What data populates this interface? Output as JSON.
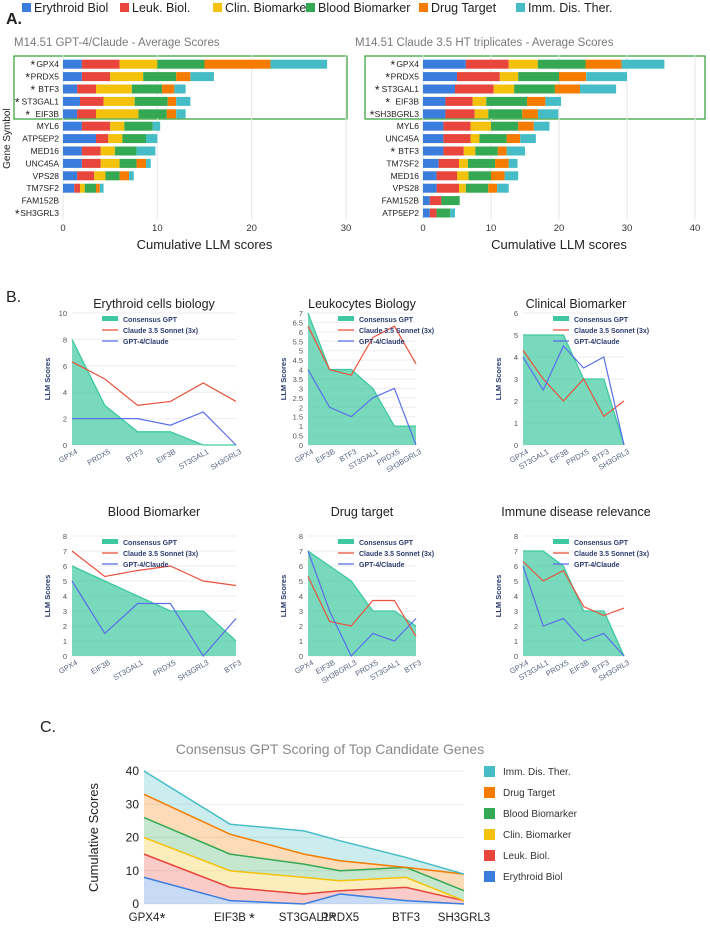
{
  "colors": {
    "erythroid": "#3b7ddd",
    "leuk": "#e8453c",
    "clin": "#f4c20d",
    "blood": "#34a853",
    "drug": "#f57c00",
    "imm": "#46bdc6",
    "consensus": "#3ec9a0",
    "claude": "#e8533f",
    "gpt": "#5a6fe8",
    "highlight": "#2e9e2e"
  },
  "panel_labels": {
    "a": "A.",
    "b": "B.",
    "c": "C."
  },
  "legend_top": [
    "Erythroid Biol",
    "Leuk. Biol.",
    "Clin. Biomarker",
    "Blood Biomarker",
    "Drug Target",
    "Imm. Dis. Ther."
  ],
  "chart_data": [
    {
      "type": "bar",
      "id": "a1",
      "stacked": true,
      "horizontal": true,
      "title": "M14.51 GPT-4/Claude - Average Scores",
      "xlabel": "Cumulative LLM scores",
      "ylabel": "Gene Symbol",
      "xlim": [
        0,
        30
      ],
      "xticks": [
        "0",
        "10",
        "20",
        "30"
      ],
      "categories": [
        "GPX4",
        "PRDX5",
        "BTF3",
        "ST3GAL1",
        "EIF3B",
        "MYL6",
        "ATP5EP2",
        "MED16",
        "UNC45A",
        "VPS28",
        "TM7SF2",
        "FAM152B",
        "SH3GRL3"
      ],
      "starred": [
        "GPX4",
        "PRDX5",
        "BTF3",
        "ST3GAL1",
        "EIF3B",
        "SH3GRL3"
      ],
      "series": [
        {
          "name": "Erythroid Biol",
          "values": [
            2,
            2,
            1.5,
            1.8,
            1.5,
            2,
            3.5,
            2,
            2,
            1.5,
            1.2,
            0,
            0
          ]
        },
        {
          "name": "Leuk. Biol.",
          "values": [
            4,
            3,
            2,
            2.5,
            2,
            3,
            1.3,
            2,
            2,
            1.8,
            0.6,
            0,
            0
          ]
        },
        {
          "name": "Clin. Biomarker",
          "values": [
            4,
            3.5,
            3.8,
            3.3,
            4.5,
            1.5,
            1.5,
            1.5,
            2,
            1.2,
            0.5,
            0,
            0
          ]
        },
        {
          "name": "Blood Biomarker",
          "values": [
            5,
            3.5,
            3.2,
            3.5,
            3,
            3,
            2.5,
            2.3,
            1.8,
            1.5,
            1.2,
            0,
            0
          ]
        },
        {
          "name": "Drug Target",
          "values": [
            7,
            1.5,
            1.3,
            0.9,
            1,
            0,
            0,
            0,
            1,
            1,
            0.4,
            0,
            0
          ]
        },
        {
          "name": "Imm. Dis. Ther.",
          "values": [
            6,
            2.5,
            1.2,
            1.5,
            1,
            0.8,
            1.2,
            2,
            0.5,
            0.5,
            0.4,
            0,
            0
          ]
        }
      ]
    },
    {
      "type": "bar",
      "id": "a2",
      "stacked": true,
      "horizontal": true,
      "title": "M14.51 Claude 3.5 HT triplicates - Average Scores",
      "xlabel": "Cumulative LLM scores",
      "ylabel": "",
      "xlim": [
        0,
        40
      ],
      "xticks": [
        "0",
        "10",
        "20",
        "30",
        "40"
      ],
      "categories": [
        "GPX4",
        "PRDX5",
        "ST3GAL1",
        "EIF3B",
        "SH3BGRL3",
        "MYL6",
        "UNC45A",
        "BTF3",
        "TM7SF2",
        "MED16",
        "VPS28",
        "FAM152B",
        "ATP5EP2"
      ],
      "starred": [
        "GPX4",
        "PRDX5",
        "ST3GAL1",
        "EIF3B",
        "SH3BGRL3",
        "BTF3"
      ],
      "series": [
        {
          "name": "Erythroid Biol",
          "values": [
            6.3,
            5,
            4.7,
            3.3,
            3.3,
            3,
            3,
            3,
            2.3,
            2,
            2,
            1,
            1
          ]
        },
        {
          "name": "Leuk. Biol.",
          "values": [
            6.3,
            6.3,
            5.7,
            4,
            4.3,
            4,
            4,
            3,
            3,
            3,
            3.3,
            1.7,
            1
          ]
        },
        {
          "name": "Clin. Biomarker",
          "values": [
            4.3,
            2.7,
            3,
            2,
            2,
            3,
            1.3,
            1.7,
            1.3,
            1.7,
            1,
            0,
            0
          ]
        },
        {
          "name": "Blood Biomarker",
          "values": [
            7,
            6,
            6,
            6,
            5,
            4,
            4,
            3.3,
            4,
            3.3,
            3.3,
            2.7,
            2
          ]
        },
        {
          "name": "Drug Target",
          "values": [
            5.3,
            4,
            3.7,
            2.7,
            2.3,
            2.3,
            2,
            1.3,
            2,
            2,
            1.3,
            0,
            0
          ]
        },
        {
          "name": "Imm. Dis. Ther.",
          "values": [
            6.3,
            6,
            5.3,
            2.3,
            3,
            2.3,
            2.3,
            2.7,
            1.3,
            2,
            1.7,
            0,
            0.7
          ]
        }
      ]
    },
    {
      "type": "line",
      "id": "b1",
      "title": "Erythroid cells biology",
      "ylabel": "LLM Scores",
      "ylim": [
        0,
        10
      ],
      "yticks": [
        "0",
        "2",
        "4",
        "6",
        "8",
        "10"
      ],
      "categories": [
        "GPX4",
        "PRDX5",
        "BTF3",
        "EIF3B",
        "ST3GAL1",
        "SH3GRL3"
      ],
      "series": [
        {
          "name": "Consensus GPT",
          "values": [
            8,
            3,
            1,
            1,
            0,
            0
          ]
        },
        {
          "name": "Claude 3.5 Sonnet (3x)",
          "values": [
            6.3,
            5,
            3,
            3.3,
            4.7,
            3.3
          ]
        },
        {
          "name": "GPT-4/Claude",
          "values": [
            2,
            2,
            2,
            1.5,
            2.5,
            0
          ]
        }
      ]
    },
    {
      "type": "line",
      "id": "b2",
      "title": "Leukocytes Biology",
      "ylabel": "LLM Scores",
      "ylim": [
        0,
        7
      ],
      "yticks": [
        "0",
        "0.5",
        "1",
        "1.5",
        "2",
        "2.5",
        "3",
        "3.5",
        "4",
        "4.5",
        "5",
        "5.5",
        "6",
        "6.5",
        "7"
      ],
      "categories": [
        "GPX4",
        "EIF3B",
        "BTF3",
        "ST3GAL1",
        "PRDX5",
        "SH3BGRL3"
      ],
      "series": [
        {
          "name": "Consensus GPT",
          "values": [
            7,
            4,
            4,
            3,
            1,
            1
          ]
        },
        {
          "name": "Claude 3.5 Sonnet (3x)",
          "values": [
            6.3,
            4,
            3.7,
            5.7,
            6.3,
            4.3
          ]
        },
        {
          "name": "GPT-4/Claude",
          "values": [
            4,
            2,
            1.5,
            2.5,
            3,
            0
          ]
        }
      ]
    },
    {
      "type": "line",
      "id": "b3",
      "title": "Clinical Biomarker",
      "ylabel": "LLM Scores",
      "ylim": [
        0,
        6
      ],
      "yticks": [
        "0",
        "1",
        "2",
        "3",
        "4",
        "5",
        "6"
      ],
      "categories": [
        "GPX4",
        "ST3GAL1",
        "EIF3B",
        "PRDX5",
        "BTF3",
        "SH3GRL3"
      ],
      "series": [
        {
          "name": "Consensus GPT",
          "values": [
            5,
            5,
            5,
            3,
            3,
            0
          ]
        },
        {
          "name": "Claude 3.5 Sonnet (3x)",
          "values": [
            4.3,
            3,
            2,
            3,
            1.3,
            2
          ]
        },
        {
          "name": "GPT-4/Claude",
          "values": [
            4,
            2.5,
            4.5,
            3.5,
            4,
            0
          ]
        }
      ]
    },
    {
      "type": "line",
      "id": "b4",
      "title": "Blood Biomarker",
      "ylabel": "LLM Scores",
      "ylim": [
        0,
        8
      ],
      "yticks": [
        "0",
        "1",
        "2",
        "3",
        "4",
        "5",
        "6",
        "7",
        "8"
      ],
      "categories": [
        "GPX4",
        "EIF3B",
        "ST3GAL1",
        "PRDX5",
        "SH3GRL3",
        "BTF3"
      ],
      "series": [
        {
          "name": "Consensus GPT",
          "values": [
            6,
            5,
            4,
            3,
            3,
            1
          ]
        },
        {
          "name": "Claude 3.5 Sonnet (3x)",
          "values": [
            7,
            5.3,
            5.7,
            6,
            5,
            4.7
          ]
        },
        {
          "name": "GPT-4/Claude",
          "values": [
            5,
            1.5,
            3.5,
            3.5,
            0,
            2.5
          ]
        }
      ]
    },
    {
      "type": "line",
      "id": "b5",
      "title": "Drug target",
      "ylabel": "LLM Scores",
      "ylim": [
        0,
        8
      ],
      "yticks": [
        "0",
        "1",
        "2",
        "3",
        "4",
        "5",
        "6",
        "7",
        "8"
      ],
      "categories": [
        "GPX4",
        "EIF3B",
        "SH3BGRL3",
        "PRDX5",
        "ST3GAL1",
        "BTF3"
      ],
      "series": [
        {
          "name": "Consensus GPT",
          "values": [
            7,
            6,
            5,
            3,
            3,
            2
          ]
        },
        {
          "name": "Claude 3.5 Sonnet (3x)",
          "values": [
            5.3,
            2.3,
            2,
            3.7,
            3.7,
            1.3
          ]
        },
        {
          "name": "GPT-4/Claude",
          "values": [
            7,
            3,
            0,
            1.5,
            1,
            2.5
          ]
        }
      ]
    },
    {
      "type": "line",
      "id": "b6",
      "title": "Immune disease relevance",
      "ylabel": "LLM Scores",
      "ylim": [
        0,
        8
      ],
      "yticks": [
        "0",
        "1",
        "2",
        "3",
        "4",
        "5",
        "6",
        "7",
        "8"
      ],
      "categories": [
        "GPX4",
        "ST3GAL1",
        "PRDX5",
        "EIF3B",
        "BTF3",
        "SH3GRL3"
      ],
      "series": [
        {
          "name": "Consensus GPT",
          "values": [
            7,
            7,
            6,
            3,
            3,
            0
          ]
        },
        {
          "name": "Claude 3.5 Sonnet (3x)",
          "values": [
            6.3,
            5,
            5.7,
            3.3,
            2.7,
            3.2
          ]
        },
        {
          "name": "GPT-4/Claude",
          "values": [
            6,
            2,
            2.5,
            1,
            1.5,
            0
          ]
        }
      ]
    },
    {
      "type": "area",
      "id": "c",
      "stacked": true,
      "title": "Consensus GPT Scoring of Top Candidate Genes",
      "ylabel": "Cumulative Scores",
      "ylim": [
        0,
        40
      ],
      "yticks": [
        "0",
        "10",
        "20",
        "30",
        "40"
      ],
      "categories": [
        "GPX4",
        "EIF3B",
        "ST3GAL1",
        "PRDX5",
        "BTF3",
        "SH3GRL3"
      ],
      "starred": [
        "GPX4",
        "EIF3B",
        "ST3GAL1"
      ],
      "legend": [
        "Imm. Dis. Ther.",
        "Drug Target",
        "Blood Biomarker",
        "Clin. Biomarker",
        "Leuk. Biol.",
        "Erythroid Biol"
      ],
      "series": [
        {
          "name": "Erythroid Biol",
          "values": [
            8,
            1,
            0,
            3,
            1,
            0
          ]
        },
        {
          "name": "Leuk. Biol.",
          "values": [
            7,
            4,
            3,
            1,
            4,
            1
          ]
        },
        {
          "name": "Clin. Biomarker",
          "values": [
            5,
            5,
            5,
            3,
            3,
            0
          ]
        },
        {
          "name": "Blood Biomarker",
          "values": [
            6,
            5,
            4,
            3,
            3,
            3
          ]
        },
        {
          "name": "Drug Target",
          "values": [
            7,
            6,
            3,
            3,
            0,
            5
          ]
        },
        {
          "name": "Imm. Dis. Ther.",
          "values": [
            7,
            3,
            7,
            6,
            3,
            0
          ]
        }
      ]
    }
  ]
}
